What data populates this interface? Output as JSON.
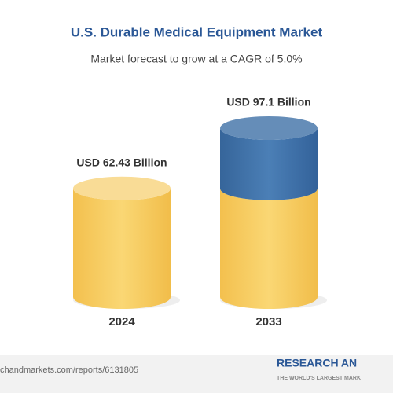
{
  "chart_data": {
    "type": "cylinder",
    "title": "U.S. Durable Medical Equipment Market",
    "subtitle": "Market forecast to grow at a CAGR of 5.0%",
    "categories": [
      "2024",
      "2033"
    ],
    "values": [
      62.43,
      97.1
    ],
    "value_labels": [
      "USD 62.43 Billion",
      "USD 97.1 Billion"
    ],
    "colors": [
      "#f6c95e",
      "#3f70a6"
    ],
    "source": "chandmarkets.com/reports/6131805",
    "logo": "RESEARCH AN",
    "logo_tagline": "THE WORLD'S LARGEST MARK"
  }
}
